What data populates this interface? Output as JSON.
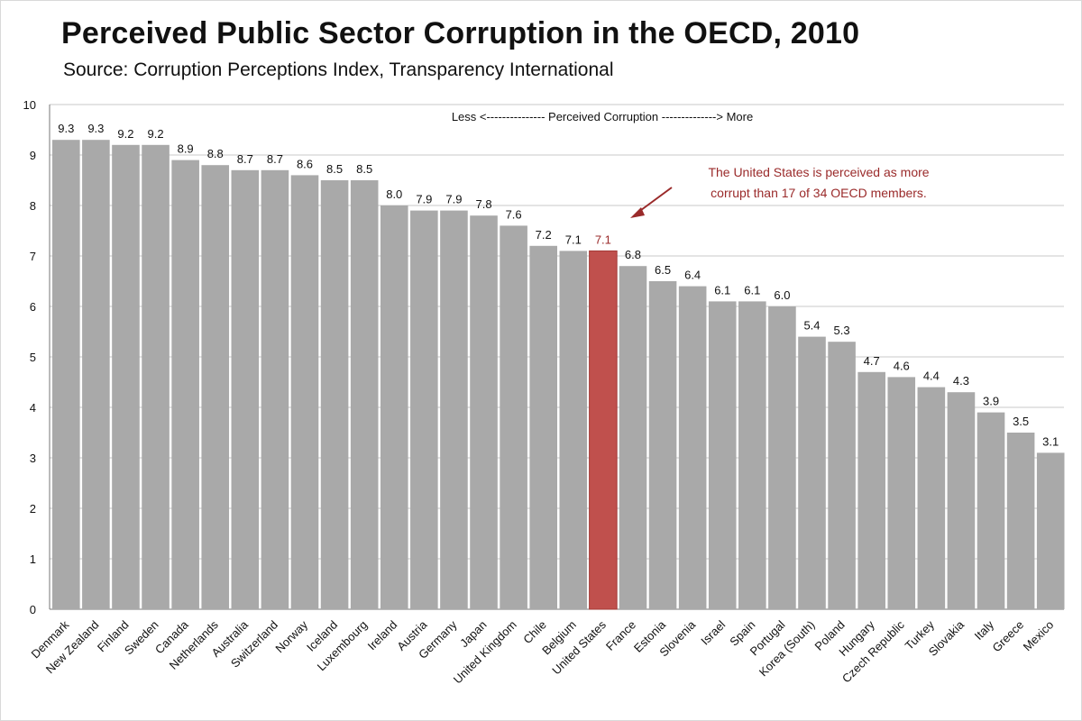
{
  "title": "Perceived Public Sector Corruption in the OECD, 2010",
  "subtitle": "Source: Corruption Perceptions Index, Transparency International",
  "colors": {
    "bar": "#a9a9a9",
    "highlight": "#c0504d",
    "annotation": "#9a2a2a",
    "grid": "#c8c8c8"
  },
  "chart_data": {
    "type": "bar",
    "title": "Perceived Public Sector Corruption in the OECD, 2010",
    "subtitle": "Source: Corruption Perceptions Index, Transparency International",
    "ylim": [
      0,
      10
    ],
    "yticks": [
      "0",
      "1",
      "2",
      "3",
      "4",
      "5",
      "6",
      "7",
      "8",
      "9",
      "10"
    ],
    "grid": true,
    "highlight_category": "United States",
    "categories": [
      "Denmark",
      "New Zealand",
      "Finland",
      "Sweden",
      "Canada",
      "Netherlands",
      "Australia",
      "Switzerland",
      "Norway",
      "Iceland",
      "Luxembourg",
      "Ireland",
      "Austria",
      "Germany",
      "Japan",
      "United Kingdom",
      "Chile",
      "Belgium",
      "United States",
      "France",
      "Estonia",
      "Slovenia",
      "Israel",
      "Spain",
      "Portugal",
      "Korea (South)",
      "Poland",
      "Hungary",
      "Czech Republic",
      "Turkey",
      "Slovakia",
      "Italy",
      "Greece",
      "Mexico"
    ],
    "values": [
      9.3,
      9.3,
      9.2,
      9.2,
      8.9,
      8.8,
      8.7,
      8.7,
      8.6,
      8.5,
      8.5,
      8.0,
      7.9,
      7.9,
      7.8,
      7.6,
      7.2,
      7.1,
      7.1,
      6.8,
      6.5,
      6.4,
      6.1,
      6.1,
      6.0,
      5.4,
      5.3,
      4.7,
      4.6,
      4.4,
      4.3,
      3.9,
      3.5,
      3.1
    ],
    "value_labels": [
      "9.3",
      "9.3",
      "9.2",
      "9.2",
      "8.9",
      "8.8",
      "8.7",
      "8.7",
      "8.6",
      "8.5",
      "8.5",
      "8.0",
      "7.9",
      "7.9",
      "7.8",
      "7.6",
      "7.2",
      "7.1",
      "7.1",
      "6.8",
      "6.5",
      "6.4",
      "6.1",
      "6.1",
      "6.0",
      "5.4",
      "5.3",
      "4.7",
      "4.6",
      "4.4",
      "4.3",
      "3.9",
      "3.5",
      "3.1"
    ],
    "scale_note": "Less <--------------- Perceived Corruption --------------> More",
    "annotation": {
      "lines": [
        "The United States is perceived as more",
        "corrupt than 17 of 34 OECD members."
      ]
    }
  }
}
